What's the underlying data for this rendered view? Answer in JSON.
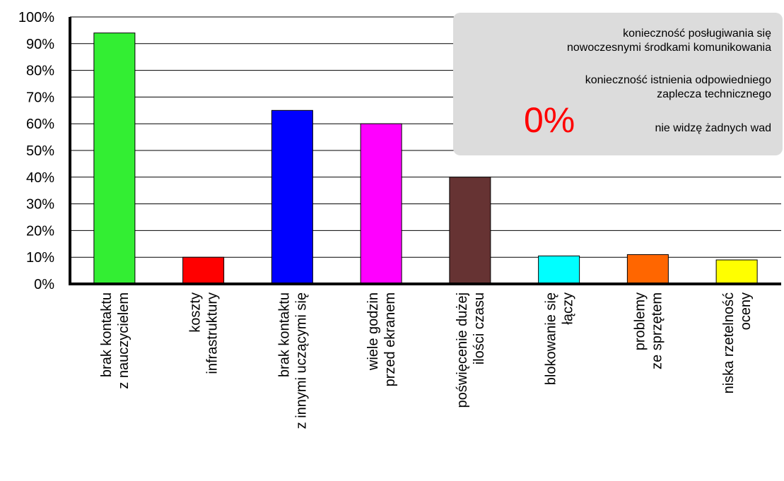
{
  "chart_data": {
    "type": "bar",
    "categories": [
      "brak kontaktu\nz nauczycielem",
      "koszty\ninfrastruktury",
      "brak kontaktu\nz innymi uczącymi się",
      "wiele godzin\nprzed ekranem",
      "poświęcenie dużej\nilości czasu",
      "blokowanie się\nłączy",
      "problemy\nze sprzętem",
      "niska rzetelność\noceny"
    ],
    "values": [
      94,
      10,
      65,
      60,
      40,
      10.5,
      11,
      9
    ],
    "colors": [
      "#33ee33",
      "#ff0000",
      "#0000ff",
      "#ff00ff",
      "#663333",
      "#00ffff",
      "#ff6600",
      "#ffff00"
    ],
    "yticks": [
      "0%",
      "10%",
      "20%",
      "30%",
      "40%",
      "50%",
      "60%",
      "70%",
      "80%",
      "90%",
      "100%"
    ],
    "ylim": [
      0,
      100
    ],
    "grid": true
  },
  "annotations": {
    "note1": "konieczność posługiwania się\nnowoczesnymi środkami komunikowania",
    "note2": "konieczność istnienia odpowiedniego\nzaplecza technicznego",
    "note3": "nie widzę żadnych wad",
    "zero_value": "0%"
  }
}
